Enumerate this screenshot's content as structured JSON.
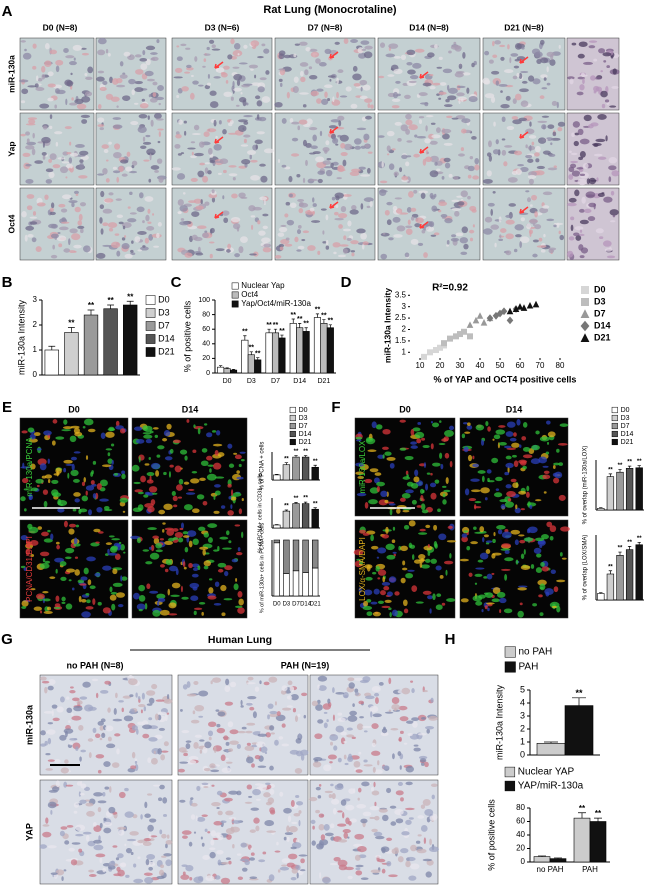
{
  "panel_labels": [
    "A",
    "B",
    "C",
    "D",
    "E",
    "F",
    "G",
    "H"
  ],
  "panel_a": {
    "title": "Rat Lung (Monocrotaline)",
    "columns": [
      "D0 (N=8)",
      "D3 (N=6)",
      "D7 (N=8)",
      "D14 (N=8)",
      "D21 (N=8)"
    ],
    "rows": [
      "miR-130a",
      "Yap",
      "Oct4"
    ]
  },
  "panel_b": {
    "type": "bar",
    "y_label": "miR-130a Intensity",
    "categories": [
      "D0",
      "D3",
      "D7",
      "D14",
      "D21"
    ],
    "values": [
      1.0,
      1.7,
      2.4,
      2.65,
      2.8
    ],
    "errors": [
      0.15,
      0.2,
      0.2,
      0.15,
      0.15
    ],
    "colors": [
      "#ffffff",
      "#cfcfcf",
      "#9a9a9a",
      "#555555",
      "#111111"
    ],
    "significance": [
      null,
      "**",
      "**",
      "**",
      "**"
    ],
    "ylim": [
      0,
      3
    ],
    "yticks": [
      0,
      1,
      2,
      3
    ],
    "legend": "right"
  },
  "panel_c": {
    "type": "bar",
    "y_label": "% of positive cells",
    "categories": [
      "D0",
      "D3",
      "D7",
      "D14",
      "D21"
    ],
    "series": [
      {
        "name": "Nuclear Yap",
        "color": "#ffffff",
        "values": [
          8,
          45,
          55,
          68,
          76
        ],
        "errors": [
          2,
          6,
          5,
          6,
          5
        ],
        "significance": [
          null,
          "**",
          "**",
          "**",
          "**"
        ]
      },
      {
        "name": "Oct4",
        "color": "#bbbbbb",
        "values": [
          6,
          25,
          55,
          62,
          68
        ],
        "errors": [
          1,
          4,
          5,
          6,
          5
        ],
        "significance": [
          null,
          "**",
          "**",
          "**",
          "**"
        ]
      },
      {
        "name": "Yap/Oct4/miR-130a",
        "color": "#111111",
        "values": [
          4,
          18,
          48,
          57,
          62
        ],
        "errors": [
          1,
          3,
          4,
          5,
          4
        ],
        "significance": [
          null,
          "**",
          "**",
          "**",
          "**"
        ]
      }
    ],
    "ylim": [
      0,
      100
    ],
    "yticks": [
      0,
      20,
      40,
      60,
      80,
      100
    ],
    "legend": "top"
  },
  "panel_d": {
    "type": "scatter",
    "x_label": "% of YAP and OCT4 positive cells",
    "y_label": "miR-130a Intensity",
    "annotation": "R²=0.92",
    "series": [
      {
        "name": "D0",
        "color": "#d6d6d6",
        "marker": "square",
        "x": [
          12,
          15,
          18,
          20,
          22
        ],
        "y": [
          0.8,
          1.0,
          1.1,
          1.2,
          1.3
        ]
      },
      {
        "name": "D3",
        "color": "#bdbdbd",
        "marker": "square",
        "x": [
          22,
          25,
          28,
          30,
          32,
          35
        ],
        "y": [
          1.4,
          1.6,
          1.7,
          1.8,
          1.9,
          1.7
        ]
      },
      {
        "name": "D7",
        "color": "#999999",
        "marker": "triangle",
        "x": [
          35,
          38,
          40,
          42,
          45
        ],
        "y": [
          2.2,
          2.4,
          2.6,
          2.3,
          2.5
        ]
      },
      {
        "name": "D14",
        "color": "#777777",
        "marker": "diamond",
        "x": [
          45,
          48,
          50,
          52,
          55,
          58
        ],
        "y": [
          2.5,
          2.6,
          2.7,
          2.8,
          2.4,
          2.9
        ]
      },
      {
        "name": "D21",
        "color": "#111111",
        "marker": "triangle",
        "x": [
          55,
          58,
          60,
          62,
          65,
          68
        ],
        "y": [
          2.8,
          2.9,
          3.0,
          2.95,
          3.05,
          3.1
        ]
      }
    ],
    "xlim": [
      5,
      80
    ],
    "xticks": [
      10,
      20,
      30,
      40,
      50,
      60,
      70,
      80
    ],
    "ylim": [
      0.75,
      3.6
    ],
    "yticks": [
      1,
      1.5,
      2,
      2.5,
      3,
      3.5
    ],
    "legend": "right"
  },
  "panel_e": {
    "columns": [
      "D0",
      "D14"
    ],
    "rows": [
      "miR-130a/PCNA",
      "PCNA/CD31/DAPI"
    ],
    "charts": [
      {
        "type": "bar",
        "y_label": "% of PCNA + cells",
        "categories": [
          "D0",
          "D3",
          "D7",
          "D14",
          "D21"
        ],
        "values": [
          10,
          30,
          45,
          45,
          25
        ],
        "errors": [
          1,
          4,
          3,
          3,
          4
        ],
        "colors": [
          "#ffffff",
          "#cfcfcf",
          "#9a9a9a",
          "#555555",
          "#111111"
        ],
        "significance": [
          null,
          "**",
          "**",
          "**",
          "**"
        ],
        "ylim": [
          0,
          55
        ],
        "legend": "top"
      },
      {
        "type": "bar",
        "y_label": "% of PCNA+ cells in CD31- cells",
        "values": [
          8,
          45,
          65,
          65,
          50
        ],
        "errors": [
          1,
          3,
          3,
          4,
          4
        ],
        "colors": [
          "#ffffff",
          "#cfcfcf",
          "#9a9a9a",
          "#555555",
          "#111111"
        ],
        "significance": [
          null,
          "**",
          "**",
          "**",
          "**"
        ],
        "ylim": [
          0,
          80
        ]
      },
      {
        "type": "bar",
        "stacked": true,
        "y_label": "% of miR-130a+ cells in PCNA+ cells",
        "categories": [
          "D0",
          "D3",
          "D7",
          "D14",
          "D21"
        ],
        "series": [
          {
            "color": "#ffffff",
            "values": [
              95,
              40,
              45,
              42,
              50
            ]
          },
          {
            "color": "#888888",
            "values": [
              5,
              60,
              55,
              58,
              50
            ]
          }
        ],
        "ylim": [
          0,
          100
        ]
      }
    ]
  },
  "panel_f": {
    "columns": [
      "D0",
      "D14"
    ],
    "rows": [
      "miR-130a/LOX",
      "LOX/α-SMA/DAPI"
    ],
    "charts": [
      {
        "type": "bar",
        "y_label": "% of overlap (miR-130a/LOX)",
        "categories": [
          "D0",
          "D3",
          "D7",
          "D14",
          "D21"
        ],
        "values": [
          3,
          60,
          68,
          75,
          76
        ],
        "errors": [
          1,
          5,
          5,
          4,
          4
        ],
        "colors": [
          "#ffffff",
          "#cfcfcf",
          "#9a9a9a",
          "#555555",
          "#111111"
        ],
        "significance": [
          null,
          "**",
          "**",
          "**",
          "**"
        ],
        "ylim": [
          0,
          90
        ],
        "legend": "top"
      },
      {
        "type": "bar",
        "y_label": "% of overlap (LOX/SMA)",
        "values": [
          8,
          32,
          55,
          62,
          68
        ],
        "errors": [
          1,
          4,
          4,
          4,
          3
        ],
        "colors": [
          "#ffffff",
          "#cfcfcf",
          "#9a9a9a",
          "#555555",
          "#111111"
        ],
        "significance": [
          null,
          "**",
          "**",
          "**",
          "**"
        ],
        "ylim": [
          0,
          80
        ]
      }
    ]
  },
  "panel_g": {
    "title": "Human Lung",
    "columns": [
      "no PAH (N=8)",
      "PAH (N=19)"
    ],
    "rows": [
      "miR-130a",
      "YAP"
    ]
  },
  "panel_h": {
    "charts": [
      {
        "type": "bar",
        "y_label": "miR-130a Intensity",
        "series": [
          {
            "name": "no PAH",
            "color": "#cccccc",
            "values": [
              0.9
            ],
            "errors": [
              0.1
            ],
            "significance": [
              null
            ]
          },
          {
            "name": "PAH",
            "color": "#111111",
            "values": [
              3.8
            ],
            "errors": [
              0.6
            ],
            "significance": [
              "**"
            ]
          }
        ],
        "ylim": [
          0,
          5
        ],
        "yticks": [
          0,
          1,
          2,
          3,
          4,
          5
        ],
        "legend": "top"
      },
      {
        "type": "bar",
        "y_label": "% of positive cells",
        "categories": [
          "no PAH",
          "PAH"
        ],
        "series": [
          {
            "name": "Nuclear YAP",
            "color": "#cccccc",
            "values": [
              8,
              65
            ],
            "errors": [
              1,
              8
            ],
            "significance": [
              null,
              "**"
            ]
          },
          {
            "name": "YAP/miR-130a",
            "color": "#111111",
            "values": [
              5,
              60
            ],
            "errors": [
              1,
              5
            ],
            "significance": [
              null,
              "**"
            ]
          }
        ],
        "ylim": [
          0,
          80
        ],
        "yticks": [
          0,
          20,
          40,
          60,
          80
        ],
        "legend": "top"
      }
    ]
  }
}
